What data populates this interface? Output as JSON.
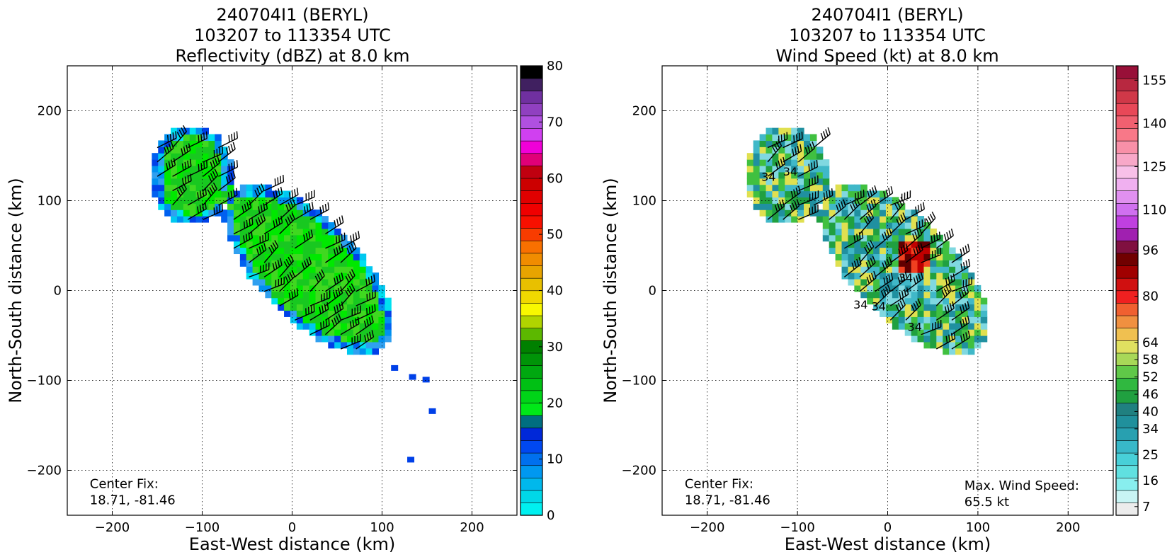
{
  "chart_data": [
    {
      "type": "heatmap",
      "title_lines": [
        "240704I1 (BERYL)",
        "103207 to 113354 UTC",
        "Reflectivity (dBZ) at 8.0 km"
      ],
      "xlabel": "East-West distance (km)",
      "ylabel": "North-South distance (km)",
      "xlim": [
        -250,
        250
      ],
      "ylim": [
        -250,
        250
      ],
      "xticks": [
        -200,
        -100,
        0,
        100,
        200
      ],
      "yticks": [
        -200,
        -100,
        0,
        100,
        200
      ],
      "grid": "dotted",
      "annotations": [
        {
          "text": "Center Fix:",
          "x": -225,
          "y": -215
        },
        {
          "text": "18.71, -81.46",
          "x": -225,
          "y": -233
        }
      ],
      "colorbar": {
        "min": 0,
        "max": 80,
        "labels": [
          "80",
          "70",
          "60",
          "50",
          "40",
          "30",
          "20",
          "10",
          "0"
        ],
        "label_values": [
          80,
          70,
          60,
          50,
          40,
          30,
          20,
          10,
          0
        ],
        "colors": [
          "#00f0f0",
          "#00d8e8",
          "#00b8ec",
          "#0098f0",
          "#0070ee",
          "#0048f0",
          "#0028d8",
          "#006e80",
          "#00e818",
          "#00d418",
          "#00c014",
          "#00a810",
          "#009408",
          "#008000",
          "#5cb800",
          "#b0d400",
          "#f8f800",
          "#f0d800",
          "#e8c000",
          "#e8a400",
          "#f08c00",
          "#f87000",
          "#f83c00",
          "#f81000",
          "#f00000",
          "#e00000",
          "#cc0000",
          "#c00010",
          "#e00078",
          "#f000d8",
          "#d040f0",
          "#b050e0",
          "#9040c0",
          "#7030a0",
          "#402060",
          "#000000"
        ]
      },
      "echo_colors": [
        "#00e800",
        "#18c820",
        "#40d820",
        "#0060f0",
        "#0040e8",
        "#0090f0",
        "#00c8f0",
        "#00e0f0",
        "#30a0f0"
      ]
    },
    {
      "type": "heatmap",
      "title_lines": [
        "240704I1 (BERYL)",
        "103207 to 113354 UTC",
        "Wind Speed (kt) at 8.0 km"
      ],
      "xlabel": "East-West distance (km)",
      "ylabel": "North-South distance (km)",
      "xlim": [
        -250,
        250
      ],
      "ylim": [
        -250,
        250
      ],
      "xticks": [
        -200,
        -100,
        0,
        100,
        200
      ],
      "yticks": [
        -200,
        -100,
        0,
        100,
        200
      ],
      "grid": "dotted",
      "annotations": [
        {
          "text": "Center Fix:",
          "x": -225,
          "y": -215
        },
        {
          "text": "18.71, -81.46",
          "x": -225,
          "y": -233
        },
        {
          "text": "Max. Wind Speed:",
          "x": 85,
          "y": -217
        },
        {
          "text": "65.5 kt",
          "x": 85,
          "y": -235
        }
      ],
      "contour_labels": [
        "34",
        "34",
        "34",
        "34",
        "34",
        "34"
      ],
      "colorbar": {
        "min": 4,
        "max": 160,
        "labels": [
          "155",
          "140",
          "125",
          "110",
          "96",
          "80",
          "64",
          "58",
          "52",
          "46",
          "40",
          "34",
          "25",
          "16",
          "7"
        ],
        "label_values": [
          155,
          140,
          125,
          110,
          96,
          80,
          64,
          58,
          52,
          46,
          40,
          34,
          25,
          16,
          7
        ],
        "colors": [
          "#ececec",
          "#c8f4f4",
          "#88eeee",
          "#60e0e0",
          "#48d0d8",
          "#38b8c8",
          "#28a0b0",
          "#20909c",
          "#208080",
          "#20a040",
          "#30b840",
          "#60c848",
          "#a8d858",
          "#e0e060",
          "#f0c050",
          "#f09040",
          "#f06030",
          "#f02020",
          "#d01010",
          "#a00000",
          "#700000",
          "#801040",
          "#a020b0",
          "#c040e0",
          "#d070f0",
          "#e090f0",
          "#f0b0f0",
          "#f8c0e8",
          "#f8a8c8",
          "#f890a8",
          "#f87888",
          "#f06070",
          "#e84858",
          "#d03848",
          "#b82840",
          "#981038"
        ]
      },
      "wind_colors": [
        "#e0e050",
        "#40c040",
        "#20a040",
        "#2090a0",
        "#40b8c8",
        "#80d8e0",
        "#f0a040",
        "#f04020",
        "#c00000",
        "#600000"
      ]
    }
  ]
}
